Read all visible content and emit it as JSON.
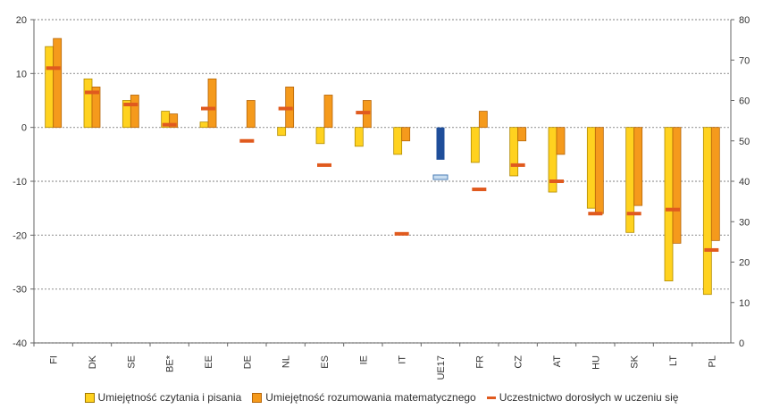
{
  "chart_data": {
    "type": "bar",
    "categories": [
      "FI",
      "DK",
      "SE",
      "BE*",
      "EE",
      "DE",
      "NL",
      "ES",
      "IE",
      "IT",
      "UE17",
      "FR",
      "CZ",
      "AT",
      "HU",
      "SK",
      "LT",
      "PL"
    ],
    "series": [
      {
        "name": "Umiejętność czytania i pisania",
        "axis": "left",
        "values": [
          15,
          9,
          5,
          3,
          1,
          null,
          -1.5,
          -3,
          -3.5,
          -5,
          -6,
          -6.5,
          -9,
          -12,
          -15,
          -19.5,
          -28.5,
          -31
        ]
      },
      {
        "name": "Umiejętność rozumowania matematycznego",
        "axis": "left",
        "values": [
          16.5,
          7.5,
          6,
          2.5,
          9,
          5,
          7.5,
          6,
          5,
          -2.5,
          -6,
          3,
          -2.5,
          -5,
          -16,
          -14.5,
          -21.5,
          -21
        ]
      },
      {
        "name": "Uczestnictwo dorosłych w uczeniu się",
        "axis": "right",
        "values": [
          68,
          62,
          59,
          54,
          58,
          50,
          58,
          44,
          57,
          27,
          41,
          38,
          44,
          40,
          32,
          32,
          33,
          23
        ]
      }
    ],
    "left_axis": {
      "min": -40,
      "max": 20,
      "ticks": [
        "20",
        "10",
        "0",
        "-10",
        "-20",
        "-30",
        "-40"
      ]
    },
    "right_axis": {
      "min": 0,
      "max": 80,
      "ticks": [
        "80",
        "70",
        "60",
        "50",
        "40",
        "30",
        "20",
        "10",
        "0"
      ]
    },
    "grid": "horizontal dotted",
    "legend_position": "bottom",
    "highlight_category": "UE17",
    "colors": {
      "reading": "#FFD21F",
      "reading_border": "#B08A00",
      "math": "#F59A1C",
      "math_border": "#B5650A",
      "participation": "#E05A1E",
      "highlight_fill": "#1F4E9A",
      "highlight_marker_fill": "#C8DDF0",
      "highlight_marker_border": "#4A7DB5",
      "grid": "#9a9a9a",
      "axis": "#666666"
    }
  },
  "legend": {
    "reading_label": "Umiejętność czytania i pisania",
    "math_label": "Umiejętność rozumowania matematycznego",
    "participation_label": "Uczestnictwo dorosłych w uczeniu się"
  }
}
